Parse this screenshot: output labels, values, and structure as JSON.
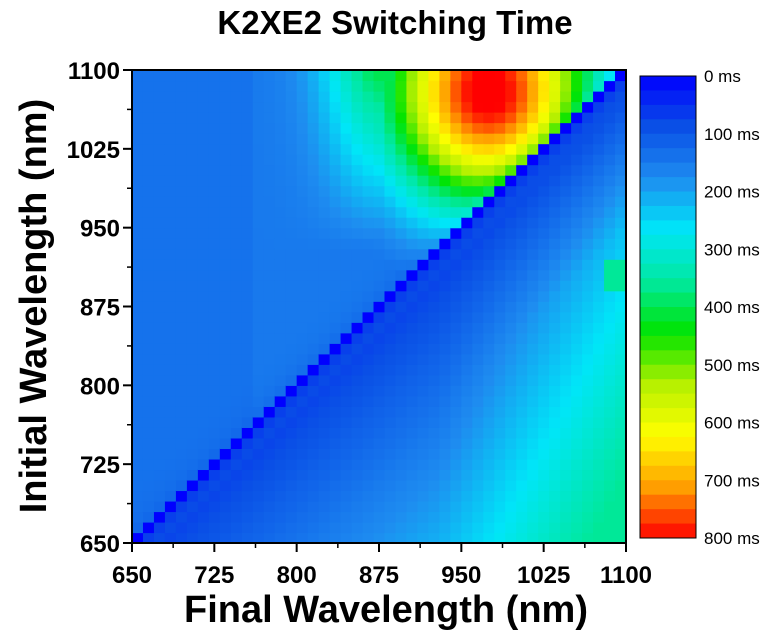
{
  "chart_data": {
    "type": "heatmap",
    "title": "K2XE2 Switching Time",
    "xlabel": "Final Wavelength (nm)",
    "ylabel": "Initial Wavelength (nm)",
    "xlim": [
      650,
      1100
    ],
    "ylim": [
      650,
      1100
    ],
    "x_ticks": [
      "650",
      "725",
      "800",
      "875",
      "950",
      "1025",
      "1100"
    ],
    "y_ticks": [
      "650",
      "725",
      "800",
      "875",
      "950",
      "1025",
      "1100"
    ],
    "grid_step_nm": 10,
    "value_unit": "ms",
    "colorbar": {
      "min": 0,
      "max": 800,
      "labels": [
        "0 ms",
        "100 ms",
        "200 ms",
        "300 ms",
        "400 ms",
        "500 ms",
        "600 ms",
        "700 ms",
        "800 ms"
      ],
      "colors": [
        "#0000ff",
        "#0a50e6",
        "#1e8cf0",
        "#00e6f8",
        "#00e8a0",
        "#00e400",
        "#b4f000",
        "#ffff00",
        "#ffa000",
        "#ff0000"
      ]
    },
    "notes_values_ms": {
      "diagonal": 0,
      "lower_left_region": 80,
      "upper_left_region": 120,
      "peak_upper_center_approx": 740,
      "lower_right_corner_approx": 300
    }
  }
}
